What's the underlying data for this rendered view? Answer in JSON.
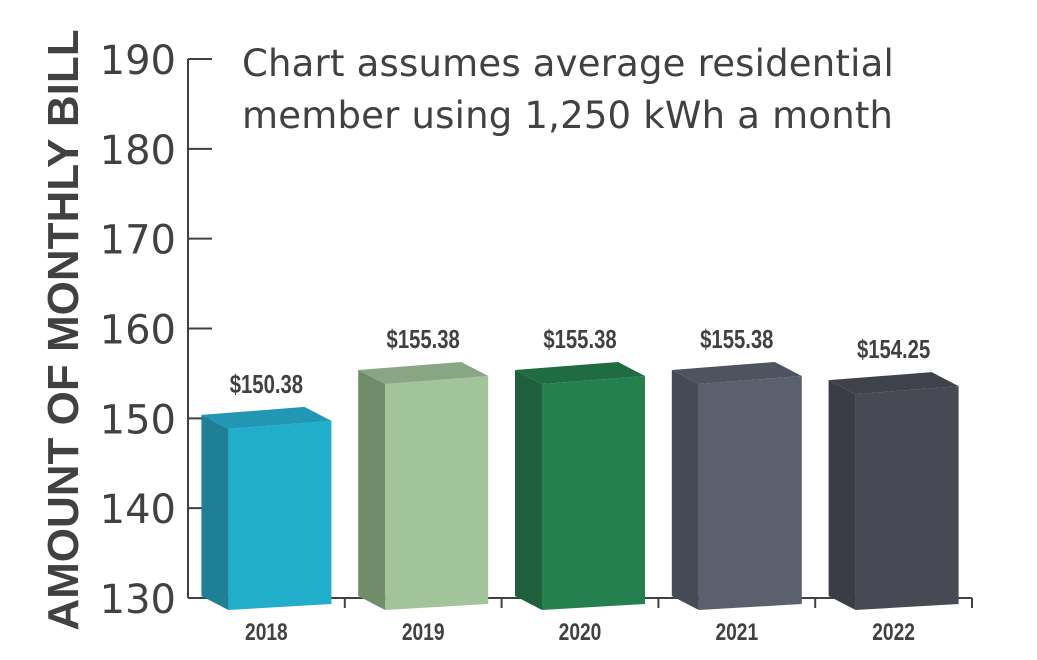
{
  "chart_data": {
    "type": "bar",
    "title": "",
    "annotation": [
      "Chart assumes average residential",
      "member using 1,250 kWh a month"
    ],
    "xlabel": "",
    "ylabel": "AMOUNT OF MONTHLY BILL",
    "ylim": [
      130,
      190
    ],
    "yticks": [
      130,
      140,
      150,
      160,
      170,
      180,
      190
    ],
    "grid": false,
    "categories": [
      "2018",
      "2019",
      "2020",
      "2021",
      "2022"
    ],
    "values": [
      150.38,
      155.38,
      155.38,
      155.38,
      154.25
    ],
    "value_labels": [
      "$150.38",
      "$155.38",
      "$155.38",
      "$155.38",
      "$154.25"
    ],
    "colors": [
      {
        "front": "#21aecb",
        "side": "#1f7f94",
        "top": "#2197b5"
      },
      {
        "front": "#a2c49a",
        "side": "#6f8c6b",
        "top": "#88a683"
      },
      {
        "front": "#24804f",
        "side": "#1f5f3b",
        "top": "#1f6b42"
      },
      {
        "front": "#5b606f",
        "side": "#464a55",
        "top": "#4f5360"
      },
      {
        "front": "#474a55",
        "side": "#3a3c46",
        "top": "#3f414b"
      }
    ]
  }
}
